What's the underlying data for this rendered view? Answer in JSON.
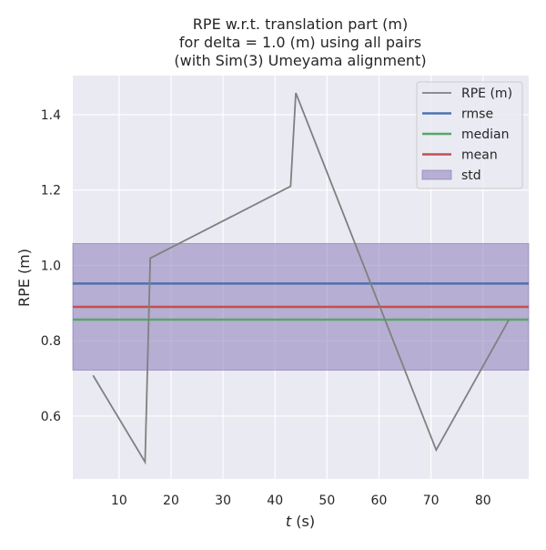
{
  "chart_data": {
    "type": "line",
    "title": [
      "RPE w.r.t. translation part (m)",
      "for delta = 1.0 (m) using all pairs",
      "(with Sim(3) Umeyama alignment)"
    ],
    "xlabel_italic": "t",
    "xlabel_rest": " (s)",
    "ylabel": "RPE (m)",
    "xlim": [
      1.1,
      88.8
    ],
    "ylim": [
      0.433,
      1.504
    ],
    "xticks": [
      10,
      20,
      30,
      40,
      50,
      60,
      70,
      80
    ],
    "yticks": [
      0.6,
      0.8,
      1.0,
      1.2,
      1.4
    ],
    "ytick_labels": [
      "0.6",
      "0.8",
      "1.0",
      "1.2",
      "1.4"
    ],
    "grid": true,
    "legend_position": "top-right",
    "series": [
      {
        "name": "RPE (m)",
        "color": "#808080",
        "x": [
          5,
          15,
          16,
          43,
          44,
          71,
          85
        ],
        "y": [
          0.708,
          0.478,
          1.019,
          1.21,
          1.458,
          0.51,
          0.856
        ]
      }
    ],
    "stats": {
      "rmse": {
        "name": "rmse",
        "value": 0.952,
        "color": "#4c72b0"
      },
      "median": {
        "name": "median",
        "value": 0.856,
        "color": "#55a868"
      },
      "mean": {
        "name": "mean",
        "value": 0.89,
        "color": "#c44e52"
      },
      "std": {
        "name": "std",
        "low": 0.722,
        "high": 1.058,
        "color": "#8172b3"
      }
    },
    "background": "#eaeaf2"
  }
}
